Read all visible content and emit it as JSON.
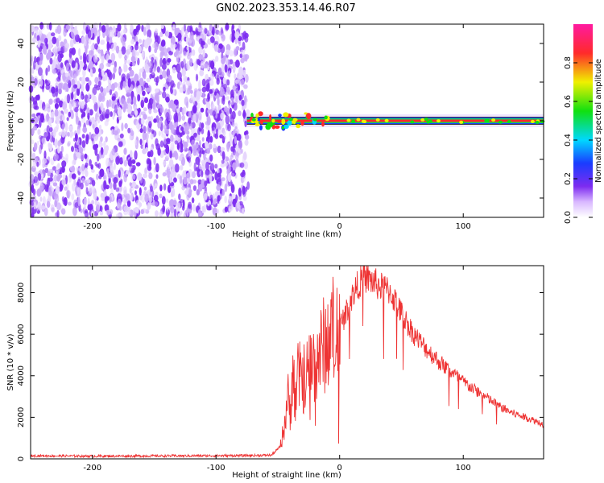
{
  "figure": {
    "title": "GN02.2023.353.14.46.R07"
  },
  "chart_data": [
    {
      "type": "heatmap",
      "xlabel": "Height of straight line (km)",
      "ylabel": "Frequency (Hz)",
      "xlim": [
        -250,
        165
      ],
      "ylim": [
        -50,
        50
      ],
      "xticks": [
        -200,
        -100,
        0,
        100
      ],
      "yticks": [
        -40,
        -20,
        0,
        20,
        40
      ],
      "noise_region_x": [
        -250,
        -75
      ],
      "signal_band": {
        "x_start": -75,
        "x_end": 165,
        "frequency": 0
      },
      "colorbar": {
        "label": "Normalized spectral amplitude",
        "range": [
          0.0,
          1.0
        ],
        "ticks": [
          0.0,
          0.2,
          0.4,
          0.6,
          0.8
        ],
        "colormap": "white-violet-blue-cyan-green-yellow-red-magenta"
      },
      "colors": {
        "noise": "#7d2cf0",
        "noise_light": "#c9a6fa",
        "band_core": "#ff2a2a",
        "band_edge": "#1a3cff"
      }
    },
    {
      "type": "line",
      "xlabel": "Height of straight line (km)",
      "ylabel": "SNR (10 * v/v)",
      "xlim": [
        -250,
        165
      ],
      "ylim": [
        0,
        9300
      ],
      "xticks": [
        -200,
        -100,
        0,
        100
      ],
      "yticks": [
        0,
        2000,
        4000,
        6000,
        8000
      ],
      "color": "#ee3333",
      "series": [
        {
          "x": [
            -250,
            -200,
            -150,
            -100,
            -70,
            -55,
            -48,
            -45,
            -42,
            -40,
            -38,
            -36,
            -34,
            -30,
            -25,
            -20,
            -15,
            -10,
            -5,
            0,
            5,
            10,
            15,
            20,
            25,
            30,
            35,
            40,
            45,
            50,
            60,
            70,
            80,
            90,
            100,
            110,
            120,
            130,
            140,
            150,
            160,
            165
          ],
          "values": [
            150,
            130,
            140,
            150,
            160,
            180,
            600,
            1500,
            3000,
            2200,
            4500,
            2800,
            4000,
            3800,
            4300,
            4700,
            5200,
            5800,
            6200,
            6400,
            7000,
            7800,
            8400,
            8800,
            8600,
            8400,
            8200,
            8100,
            7600,
            7000,
            6000,
            5300,
            4700,
            4200,
            3700,
            3300,
            2900,
            2500,
            2200,
            2000,
            1800,
            1650
          ]
        }
      ]
    }
  ]
}
